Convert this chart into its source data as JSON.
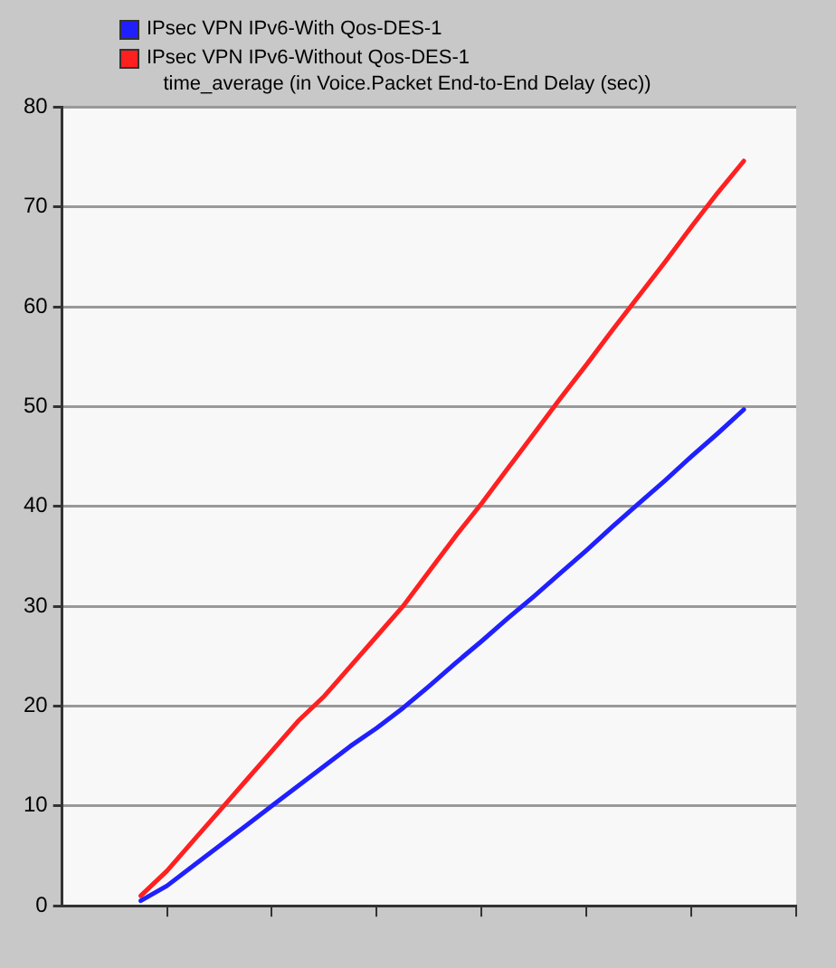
{
  "chart_data": {
    "type": "line",
    "title": "time_average (in Voice.Packet End-to-End Delay (sec))",
    "categories": [
      null,
      null,
      null,
      null,
      null,
      null,
      null,
      null,
      null,
      null,
      null,
      null,
      null,
      null,
      null,
      null,
      null,
      null,
      null,
      null,
      null,
      null,
      null,
      null,
      null,
      null,
      null,
      null,
      null
    ],
    "series": [
      {
        "name": "IPsec VPN IPv6-With Qos-DES-1",
        "color": "#2020ff",
        "values": [
          null,
          null,
          null,
          0.5,
          2,
          4,
          6,
          8,
          10,
          12,
          14,
          16,
          17.8,
          19.8,
          22,
          24.3,
          26.5,
          28.8,
          31,
          33.3,
          35.6,
          38,
          40.3,
          42.6,
          45,
          47.3,
          49.7,
          null,
          null
        ]
      },
      {
        "name": "IPsec VPN IPv6-Without Qos-DES-1",
        "color": "#ff2020",
        "values": [
          null,
          null,
          null,
          1,
          3.5,
          6.5,
          9.5,
          12.5,
          15.5,
          18.5,
          21,
          24,
          27,
          30,
          33.5,
          37,
          40.3,
          43.8,
          47.3,
          50.8,
          54.2,
          57.7,
          61.1,
          64.5,
          68,
          71.4,
          74.6,
          null,
          null
        ]
      }
    ],
    "ylim": [
      0,
      80
    ],
    "yticks": [
      0,
      10,
      20,
      30,
      40,
      50,
      60,
      70,
      80
    ],
    "grid": "y",
    "legend": "top left",
    "marker": "none",
    "line_style": "solid"
  }
}
